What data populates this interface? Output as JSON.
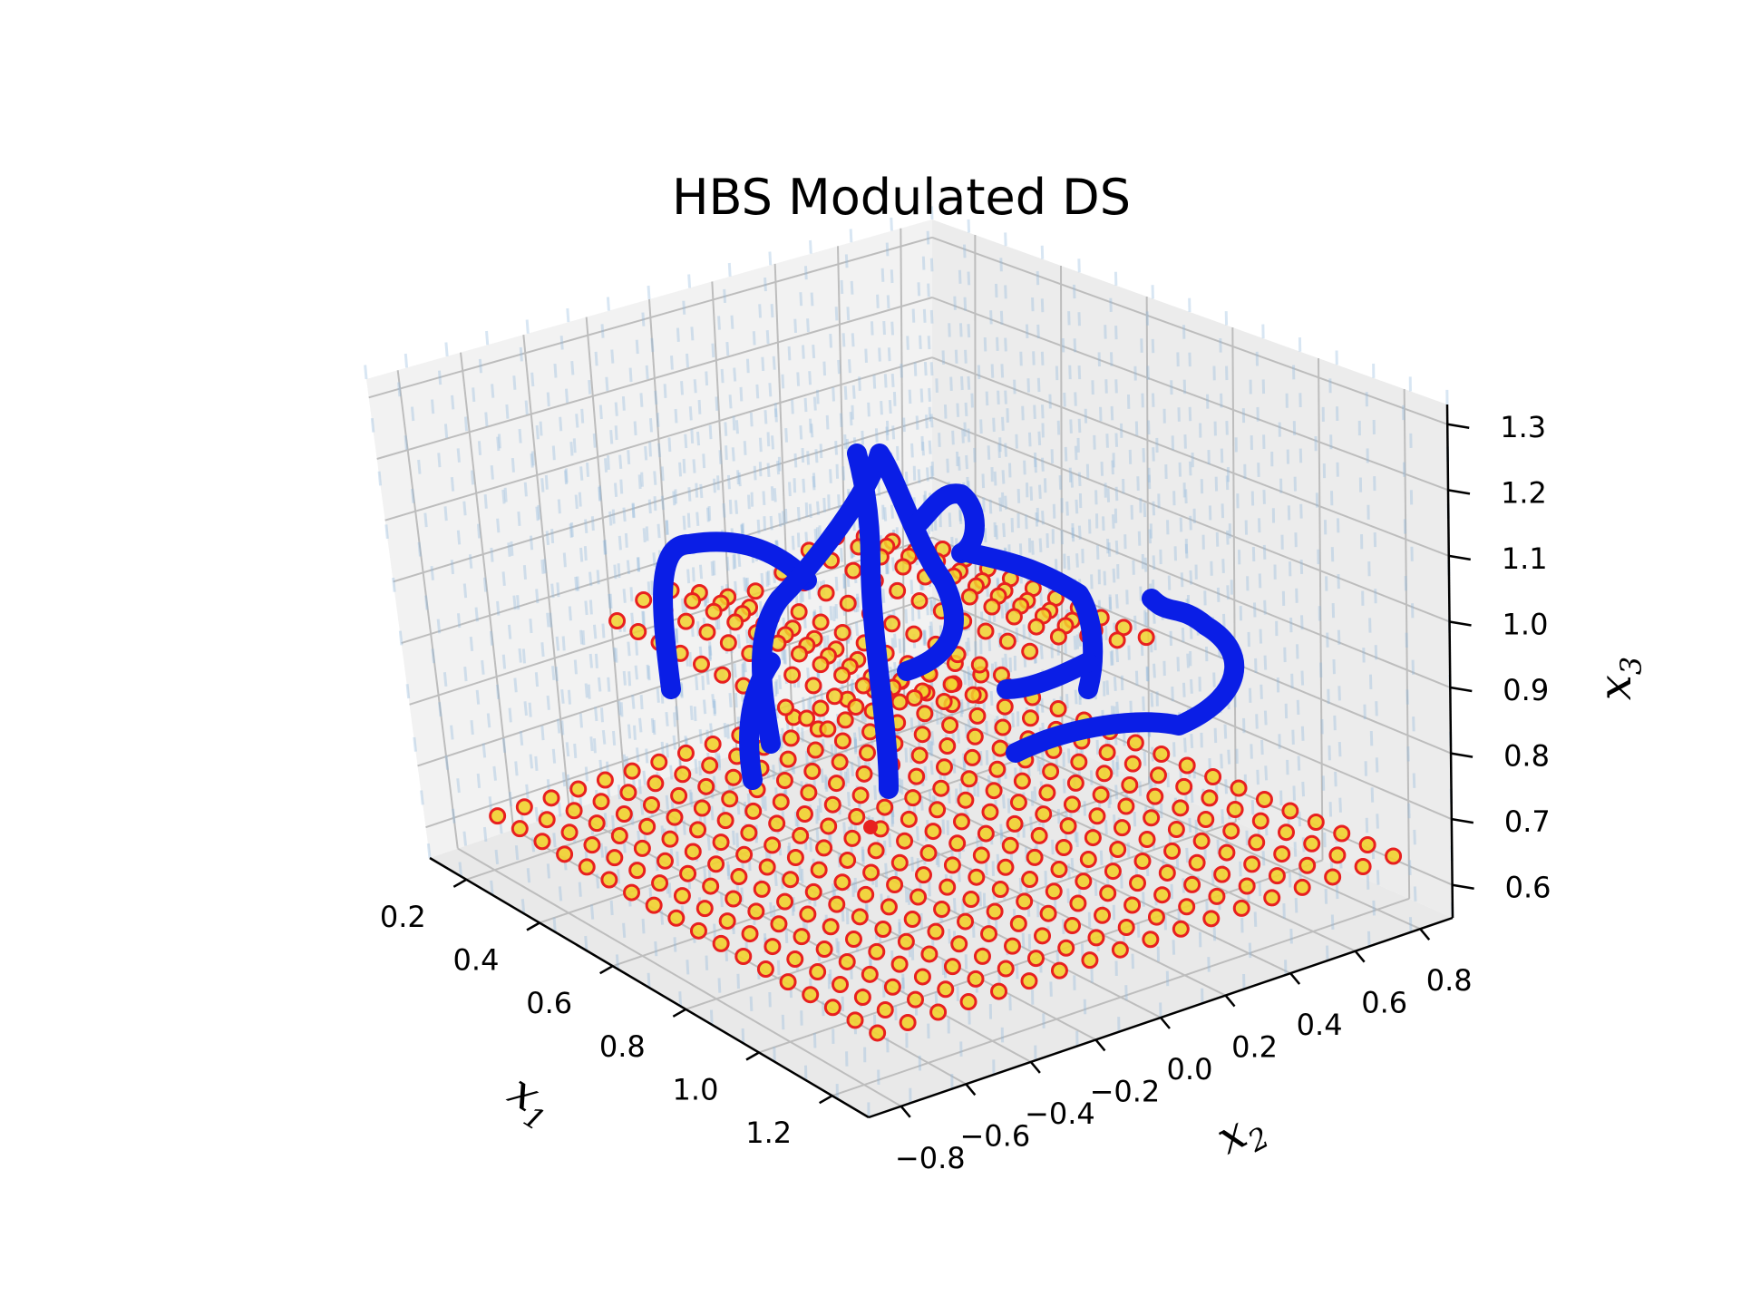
{
  "chart_data": {
    "type": "scatter3d",
    "title": "HBS Modulated DS",
    "view": "3d-perspective",
    "grid": true,
    "axes": {
      "x1": {
        "label": "x",
        "sub": "1",
        "ticks": [
          "0.2",
          "0.4",
          "0.6",
          "0.8",
          "1.0",
          "1.2"
        ],
        "range": [
          0.1,
          1.3
        ]
      },
      "x2": {
        "label": "x",
        "sub": "2",
        "ticks": [
          "−0.8",
          "−0.6",
          "−0.4",
          "−0.2",
          "0.0",
          "0.2",
          "0.4",
          "0.6",
          "0.8"
        ],
        "range": [
          -0.9,
          0.9
        ]
      },
      "x3": {
        "label": "x",
        "sub": "3",
        "ticks": [
          "0.6",
          "0.7",
          "0.8",
          "0.9",
          "1.0",
          "1.1",
          "1.2",
          "1.3"
        ],
        "range": [
          0.55,
          1.33
        ]
      }
    },
    "series": [
      {
        "kind": "vector-field",
        "color": "#8fb8dc"
      },
      {
        "kind": "scatter",
        "marker": "circle",
        "face": "#f2d22e",
        "edge": "#e8201f"
      },
      {
        "kind": "trajectories",
        "color": "#0a1ee6"
      },
      {
        "kind": "attractor",
        "color": "#e8201f"
      }
    ],
    "colors": {
      "pane": "#f2f2f2",
      "grid": "#bdbdbd"
    }
  }
}
